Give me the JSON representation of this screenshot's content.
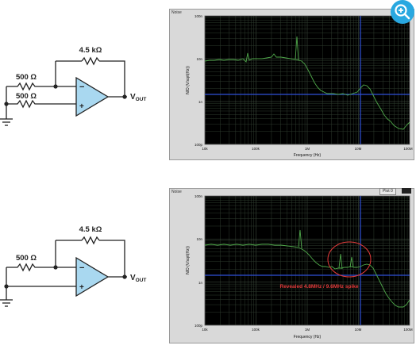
{
  "schematic_top": {
    "feedback_resistor": "4.5 kΩ",
    "input_resistor_1": "500 Ω",
    "input_resistor_2": "500 Ω",
    "minus": "−",
    "plus": "+",
    "vout_main": "V",
    "vout_sub": "OUT"
  },
  "schematic_bottom": {
    "feedback_resistor": "4.5 kΩ",
    "input_resistor": "500 Ω",
    "minus": "−",
    "plus": "+",
    "vout_main": "V",
    "vout_sub": "OUT"
  },
  "plot_top": {
    "tab": "Noise",
    "ylabel": "N/D (V/sqrt(Hz))",
    "xlabel": "Frequency (Hz)",
    "yticks": [
      "100n",
      "10n",
      "1n",
      "100p"
    ],
    "xticks": [
      "10k",
      "100k",
      "1M",
      "10M",
      "100M"
    ],
    "colors": {
      "trace": "#4fa84a",
      "cursor": "#2f4fd8",
      "grid": "#2e3b2e",
      "background": "#000000"
    }
  },
  "plot_bottom": {
    "tab": "Noise",
    "menu": "Plot 0",
    "ylabel": "N/D (V/sqrt(Hz))",
    "xlabel": "Frequency (Hz)",
    "yticks": [
      "100n",
      "10n",
      "1n",
      "100p"
    ],
    "xticks": [
      "10k",
      "100k",
      "1M",
      "10M",
      "100M"
    ],
    "annotation": "Revealed 4.8MHz / 9.6MHz spike",
    "colors": {
      "trace": "#4fa84a",
      "cursor": "#2f4fd8",
      "annotation": "#e23a3a",
      "background": "#000000"
    }
  },
  "zoom_icon": "zoom-in-icon"
}
